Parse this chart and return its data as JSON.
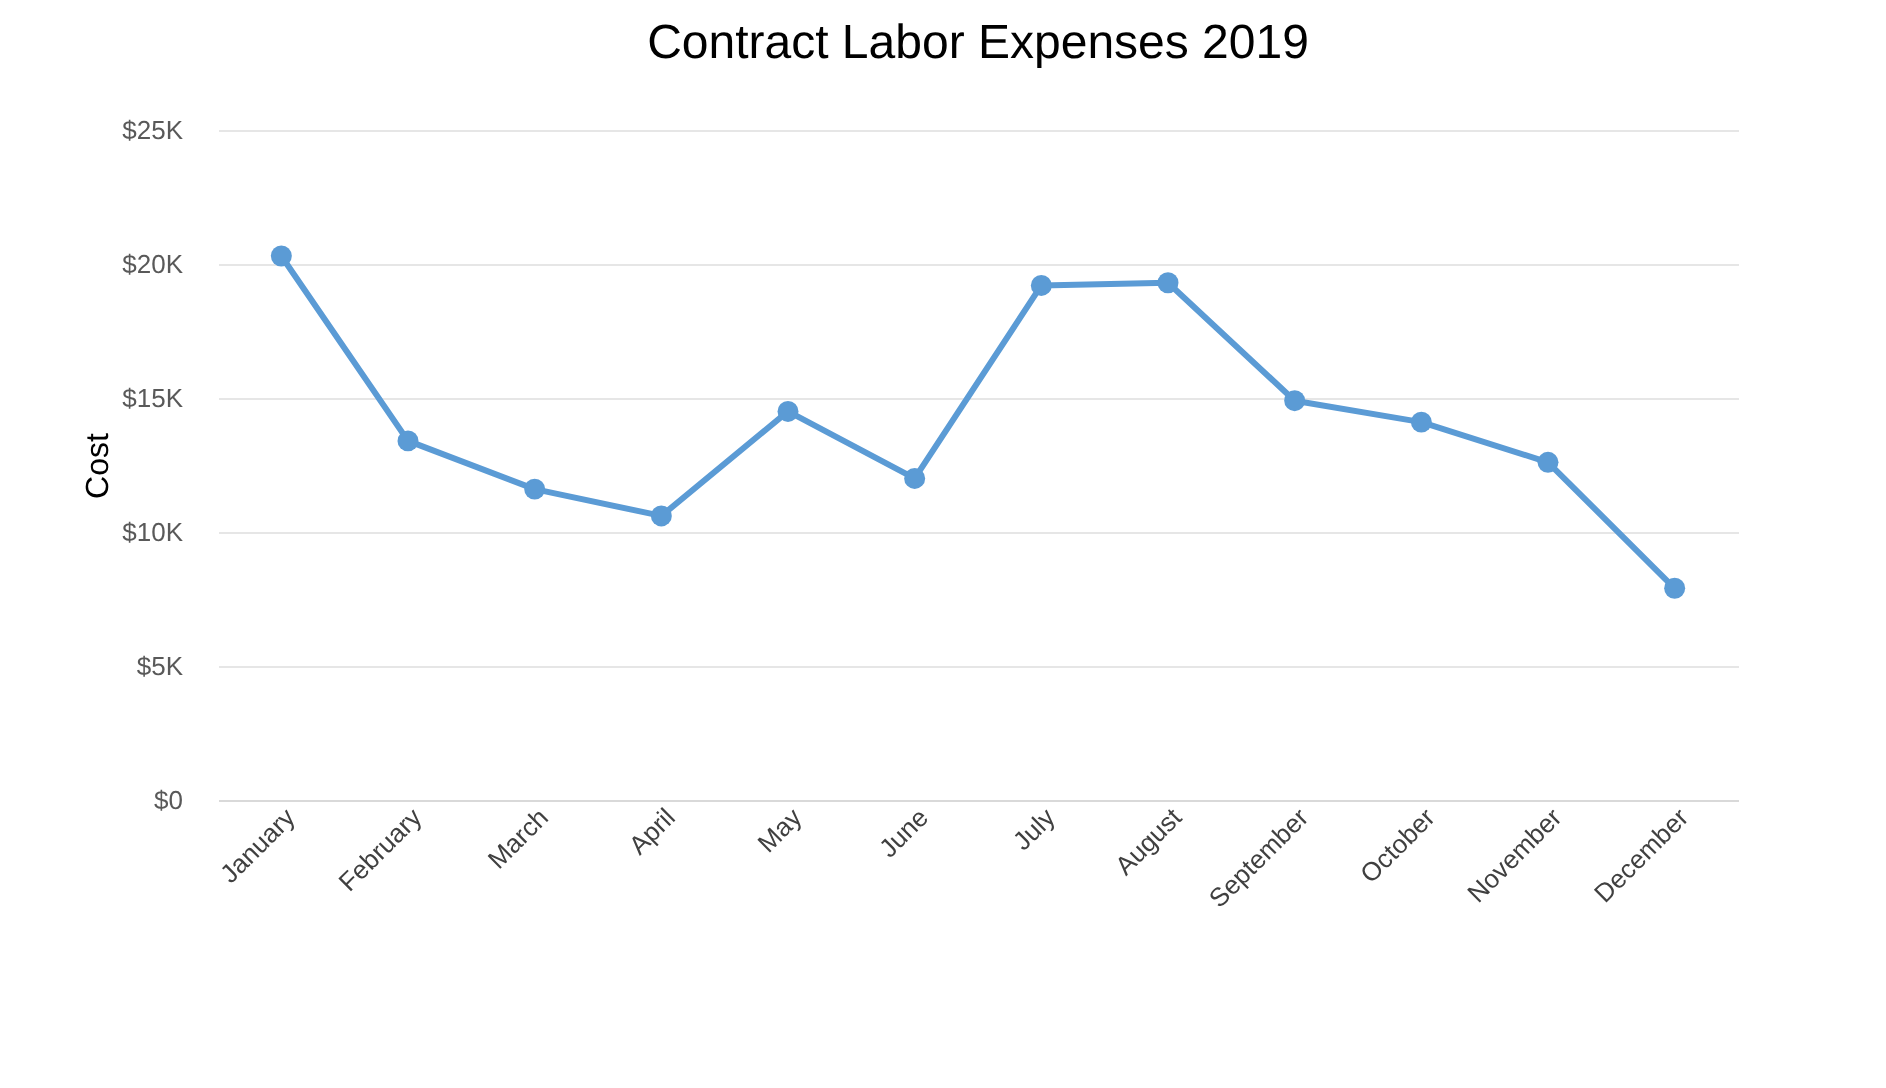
{
  "chart_data": {
    "type": "line",
    "title": "Contract Labor Expenses 2019",
    "ylabel": "Cost",
    "categories": [
      "January",
      "February",
      "March",
      "April",
      "May",
      "June",
      "July",
      "August",
      "September",
      "October",
      "November",
      "December"
    ],
    "series": [
      {
        "color": "#5b9bd5",
        "values": [
          20300,
          13400,
          11600,
          10600,
          14500,
          12000,
          19200,
          19300,
          14900,
          14100,
          12600,
          7900
        ]
      }
    ],
    "ylim": [
      0,
      25000
    ],
    "yticks": [
      {
        "value": 0,
        "label": "$0"
      },
      {
        "value": 5000,
        "label": "$5K"
      },
      {
        "value": 10000,
        "label": "$10K"
      },
      {
        "value": 15000,
        "label": "$15K"
      },
      {
        "value": 20000,
        "label": "$20K"
      },
      {
        "value": 25000,
        "label": "$25K"
      }
    ],
    "grid": "y",
    "marker": "circle",
    "line_style": "solid"
  }
}
